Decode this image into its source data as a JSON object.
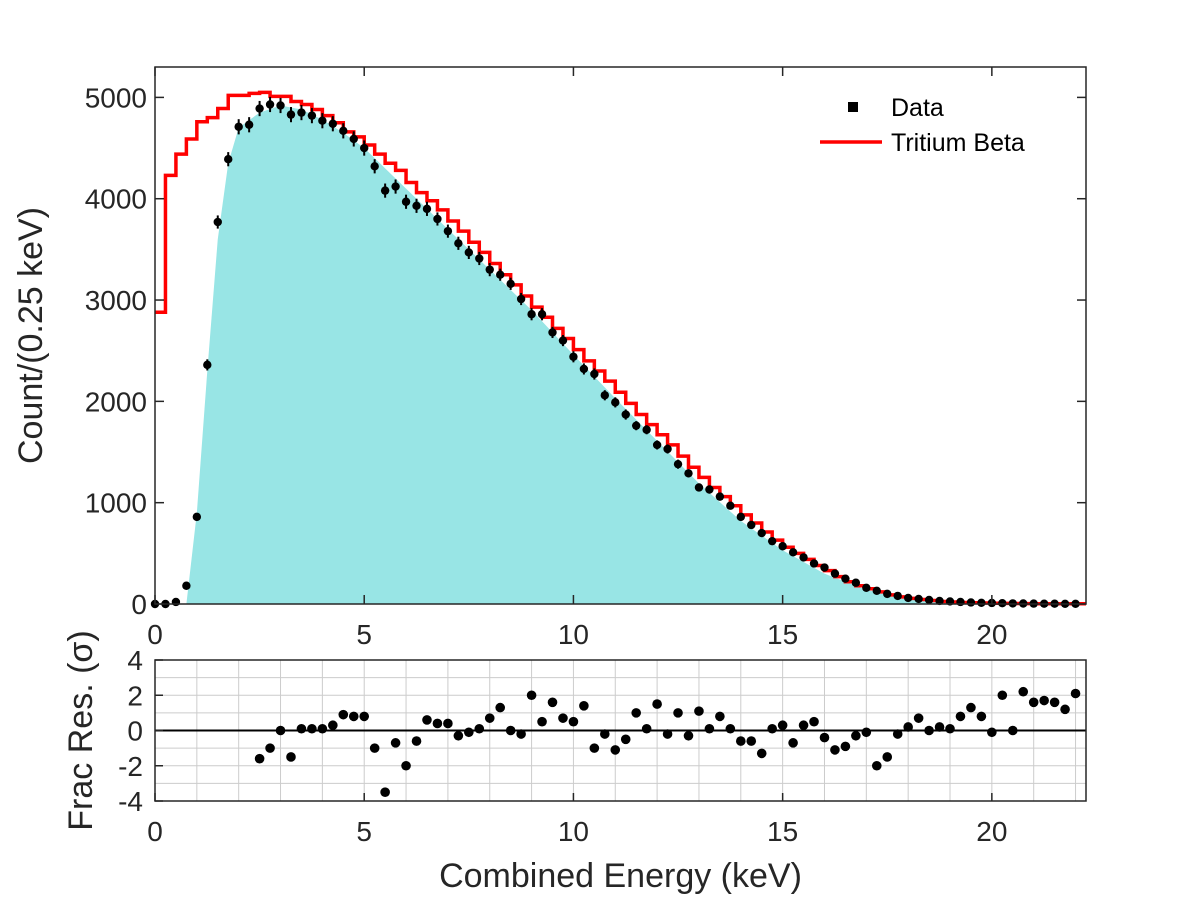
{
  "colors": {
    "fill": "#98e5e5",
    "model_line": "#ff0000",
    "points": "#000000",
    "axis": "#262626",
    "grid": "#cccccc"
  },
  "chart_data": [
    {
      "type": "bar",
      "panel": "main",
      "ylabel": "Count/(0.25 keV)",
      "xlim": [
        0,
        22.25
      ],
      "ylim": [
        0,
        5300
      ],
      "xticks": [
        "0",
        "5",
        "10",
        "15",
        "20"
      ],
      "yticks": [
        "0",
        "1000",
        "2000",
        "3000",
        "4000",
        "5000"
      ],
      "legend": {
        "position": "top-right",
        "entries": [
          "Data",
          "Tritium Beta"
        ]
      },
      "bin_width": 0.25,
      "series": [
        {
          "name": "Data",
          "kind": "points-with-errorbars",
          "x": [
            0.0,
            0.25,
            0.5,
            0.75,
            1.0,
            1.25,
            1.5,
            1.75,
            2.0,
            2.25,
            2.5,
            2.75,
            3.0,
            3.25,
            3.5,
            3.75,
            4.0,
            4.25,
            4.5,
            4.75,
            5.0,
            5.25,
            5.5,
            5.75,
            6.0,
            6.25,
            6.5,
            6.75,
            7.0,
            7.25,
            7.5,
            7.75,
            8.0,
            8.25,
            8.5,
            8.75,
            9.0,
            9.25,
            9.5,
            9.75,
            10.0,
            10.25,
            10.5,
            10.75,
            11.0,
            11.25,
            11.5,
            11.75,
            12.0,
            12.25,
            12.5,
            12.75,
            13.0,
            13.25,
            13.5,
            13.75,
            14.0,
            14.25,
            14.5,
            14.75,
            15.0,
            15.25,
            15.5,
            15.75,
            16.0,
            16.25,
            16.5,
            16.75,
            17.0,
            17.25,
            17.5,
            17.75,
            18.0,
            18.25,
            18.5,
            18.75,
            19.0,
            19.25,
            19.5,
            19.75,
            20.0,
            20.25,
            20.5,
            20.75,
            21.0,
            21.25,
            21.5,
            21.75,
            22.0
          ],
          "y": [
            0,
            0,
            20,
            180,
            860,
            2360,
            3770,
            4390,
            4710,
            4730,
            4890,
            4930,
            4920,
            4830,
            4850,
            4820,
            4770,
            4740,
            4670,
            4590,
            4500,
            4320,
            4080,
            4120,
            3970,
            3930,
            3900,
            3800,
            3680,
            3560,
            3470,
            3410,
            3300,
            3250,
            3160,
            3010,
            2860,
            2860,
            2680,
            2600,
            2440,
            2320,
            2270,
            2060,
            1990,
            1870,
            1760,
            1720,
            1570,
            1530,
            1380,
            1290,
            1150,
            1130,
            1060,
            970,
            860,
            780,
            700,
            620,
            570,
            510,
            460,
            400,
            360,
            300,
            250,
            210,
            160,
            130,
            100,
            80,
            60,
            50,
            40,
            30,
            25,
            20,
            15,
            12,
            10,
            8,
            6,
            5,
            4,
            3,
            3,
            2,
            2
          ],
          "error": [
            10,
            10,
            10,
            20,
            35,
            55,
            65,
            70,
            75,
            75,
            75,
            75,
            75,
            75,
            75,
            75,
            75,
            75,
            75,
            75,
            75,
            70,
            70,
            70,
            70,
            70,
            70,
            65,
            65,
            65,
            65,
            65,
            65,
            60,
            60,
            60,
            60,
            60,
            55,
            55,
            55,
            55,
            55,
            50,
            50,
            50,
            45,
            45,
            45,
            45,
            45,
            40,
            40,
            40,
            40,
            35,
            35,
            30,
            30,
            30,
            25,
            25,
            25,
            20,
            20,
            20,
            20,
            15,
            15,
            15,
            10,
            10,
            10,
            10,
            10,
            10,
            10,
            10,
            10,
            10,
            10,
            10,
            10,
            10,
            10,
            10,
            10,
            10,
            10
          ]
        },
        {
          "name": "Tritium Beta",
          "kind": "step",
          "x": [
            0.0,
            0.25,
            0.5,
            0.75,
            1.0,
            1.25,
            1.5,
            1.75,
            2.0,
            2.25,
            2.5,
            2.75,
            3.0,
            3.25,
            3.5,
            3.75,
            4.0,
            4.25,
            4.5,
            4.75,
            5.0,
            5.25,
            5.5,
            5.75,
            6.0,
            6.25,
            6.5,
            6.75,
            7.0,
            7.25,
            7.5,
            7.75,
            8.0,
            8.25,
            8.5,
            8.75,
            9.0,
            9.25,
            9.5,
            9.75,
            10.0,
            10.25,
            10.5,
            10.75,
            11.0,
            11.25,
            11.5,
            11.75,
            12.0,
            12.25,
            12.5,
            12.75,
            13.0,
            13.25,
            13.5,
            13.75,
            14.0,
            14.25,
            14.5,
            14.75,
            15.0,
            15.25,
            15.5,
            15.75,
            16.0,
            16.25,
            16.5,
            16.75,
            17.0,
            17.25,
            17.5,
            17.75,
            18.0,
            18.25,
            18.5,
            18.75,
            19.0,
            19.25,
            19.5,
            19.75,
            20.0,
            20.25,
            20.5,
            20.75,
            21.0,
            21.25,
            21.5,
            21.75,
            22.0
          ],
          "y": [
            2880,
            4230,
            4440,
            4590,
            4760,
            4800,
            4890,
            5020,
            5020,
            5040,
            5050,
            5010,
            5010,
            4960,
            4930,
            4880,
            4820,
            4750,
            4660,
            4610,
            4530,
            4440,
            4350,
            4280,
            4160,
            4060,
            3980,
            3890,
            3780,
            3680,
            3570,
            3470,
            3360,
            3250,
            3150,
            3040,
            2930,
            2830,
            2720,
            2620,
            2510,
            2400,
            2300,
            2200,
            2090,
            1980,
            1870,
            1770,
            1670,
            1570,
            1460,
            1350,
            1250,
            1150,
            1060,
            970,
            880,
            800,
            710,
            630,
            560,
            500,
            440,
            380,
            330,
            270,
            220,
            180,
            150,
            120,
            90,
            70,
            55,
            45,
            35,
            25,
            20,
            15,
            12,
            10,
            8,
            6,
            5,
            4,
            3,
            3,
            2,
            2,
            2
          ]
        },
        {
          "name": "",
          "kind": "filled-area",
          "x": [
            0.0,
            0.75,
            1.0,
            1.25,
            1.5,
            1.75,
            2.0,
            2.5,
            3.0,
            3.5,
            4.0,
            4.5,
            5.0,
            5.5,
            6.0,
            7.0,
            8.0,
            9.0,
            10.0,
            11.0,
            12.0,
            13.0,
            14.0,
            15.0,
            16.0,
            17.0,
            18.0,
            19.0,
            20.0,
            22.25
          ],
          "y": [
            0,
            0,
            900,
            2300,
            3600,
            4350,
            4700,
            4850,
            4920,
            4880,
            4780,
            4650,
            4500,
            4300,
            4100,
            3700,
            3300,
            2900,
            2460,
            2030,
            1610,
            1190,
            820,
            530,
            300,
            140,
            60,
            20,
            5,
            0
          ]
        }
      ]
    },
    {
      "type": "scatter",
      "panel": "residual",
      "xlabel": "Combined Energy (keV)",
      "ylabel": "Frac Res. (σ)",
      "xlim": [
        0,
        22.25
      ],
      "ylim": [
        -4,
        4
      ],
      "xticks": [
        "0",
        "5",
        "10",
        "15",
        "20"
      ],
      "yticks": [
        "-4",
        "-2",
        "0",
        "2",
        "4"
      ],
      "grid": true,
      "series": [
        {
          "name": "",
          "x": [
            2.5,
            2.75,
            3.0,
            3.25,
            3.5,
            3.75,
            4.0,
            4.25,
            4.5,
            4.75,
            5.0,
            5.25,
            5.5,
            5.75,
            6.0,
            6.25,
            6.5,
            6.75,
            7.0,
            7.25,
            7.5,
            7.75,
            8.0,
            8.25,
            8.5,
            8.75,
            9.0,
            9.25,
            9.5,
            9.75,
            10.0,
            10.25,
            10.5,
            10.75,
            11.0,
            11.25,
            11.5,
            11.75,
            12.0,
            12.25,
            12.5,
            12.75,
            13.0,
            13.25,
            13.5,
            13.75,
            14.0,
            14.25,
            14.5,
            14.75,
            15.0,
            15.25,
            15.5,
            15.75,
            16.0,
            16.25,
            16.5,
            16.75,
            17.0,
            17.25,
            17.5,
            17.75,
            18.0,
            18.25,
            18.5,
            18.75,
            19.0,
            19.25,
            19.5,
            19.75,
            20.0,
            20.25,
            20.5,
            20.75,
            21.0,
            21.25,
            21.5,
            21.75,
            22.0
          ],
          "values": [
            -1.6,
            -1.0,
            0.0,
            -1.5,
            0.1,
            0.1,
            0.1,
            0.3,
            0.9,
            0.8,
            0.8,
            -1.0,
            -3.5,
            -0.7,
            -2.0,
            -0.6,
            0.6,
            0.4,
            0.4,
            -0.3,
            -0.1,
            0.1,
            0.7,
            1.3,
            0.0,
            -0.2,
            2.0,
            0.5,
            1.6,
            0.7,
            0.5,
            1.4,
            -1.0,
            -0.2,
            -1.1,
            -0.5,
            1.0,
            0.1,
            1.5,
            -0.2,
            1.0,
            -0.3,
            1.1,
            0.1,
            0.8,
            0.1,
            -0.6,
            -0.6,
            -1.3,
            0.1,
            0.3,
            -0.7,
            0.3,
            0.5,
            -0.4,
            -1.1,
            -0.9,
            -0.3,
            -0.1,
            -2.0,
            -1.5,
            -0.2,
            0.2,
            0.7,
            0.0,
            0.2,
            0.1,
            0.8,
            1.3,
            0.8,
            -0.1,
            2.0,
            0.0,
            2.2,
            1.6,
            1.7,
            1.6,
            1.2,
            2.1
          ]
        }
      ]
    }
  ]
}
